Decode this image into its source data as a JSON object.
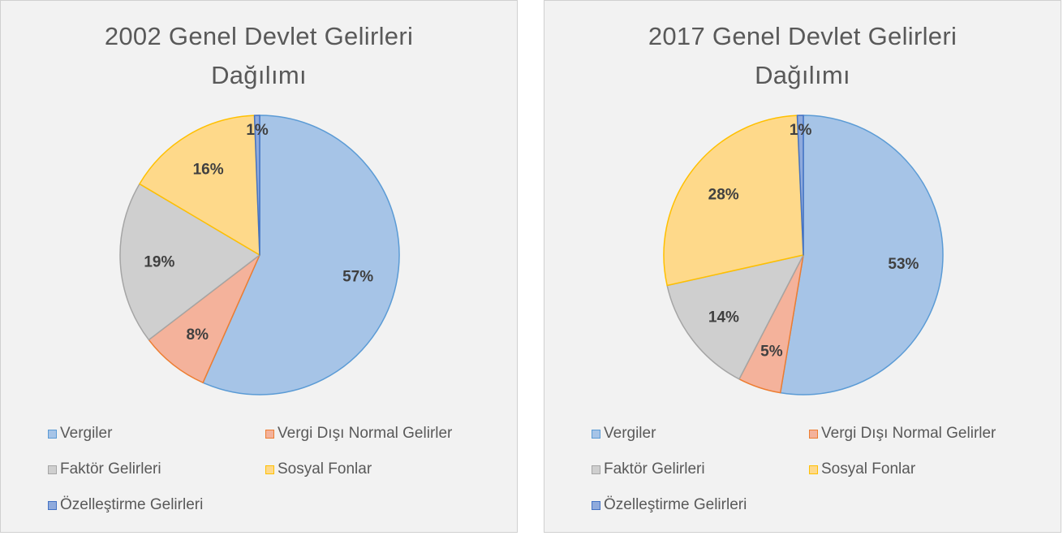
{
  "colors": {
    "Vergiler": {
      "fill": "#a6c4e7",
      "stroke": "#5b9bd5"
    },
    "Vergi Dışı Normal Gelirler": {
      "fill": "#f4b29b",
      "stroke": "#ed7d31"
    },
    "Faktör Gelirleri": {
      "fill": "#cfcfcf",
      "stroke": "#a5a5a5"
    },
    "Sosyal Fonlar": {
      "fill": "#fed98a",
      "stroke": "#ffc000"
    },
    "Özelleştirme Gelirleri": {
      "fill": "#8faadc",
      "stroke": "#4472c4"
    }
  },
  "chart_data": [
    {
      "type": "pie",
      "title_line1": "2002 Genel Devlet Gelirleri",
      "title_line2": "Dağılımı",
      "legend_position": "bottom",
      "slices": [
        {
          "label": "Vergiler",
          "value": 57,
          "display": "57%"
        },
        {
          "label": "Vergi Dışı Normal Gelirler",
          "value": 8,
          "display": "8%"
        },
        {
          "label": "Faktör Gelirleri",
          "value": 19,
          "display": "19%"
        },
        {
          "label": "Sosyal Fonlar",
          "value": 16,
          "display": "16%"
        },
        {
          "label": "Özelleştirme Gelirleri",
          "value": 0.6,
          "display": "1%"
        }
      ],
      "legend": [
        "Vergiler",
        "Vergi Dışı Normal Gelirler",
        "Faktör Gelirleri",
        "Sosyal Fonlar",
        "Özelleştirme Gelirleri"
      ]
    },
    {
      "type": "pie",
      "title_line1": "2017 Genel Devlet Gelirleri",
      "title_line2": "Dağılımı",
      "legend_position": "bottom",
      "slices": [
        {
          "label": "Vergiler",
          "value": 53,
          "display": "53%"
        },
        {
          "label": "Vergi Dışı Normal Gelirler",
          "value": 5,
          "display": "5%"
        },
        {
          "label": "Faktör Gelirleri",
          "value": 14,
          "display": "14%"
        },
        {
          "label": "Sosyal Fonlar",
          "value": 28,
          "display": "28%"
        },
        {
          "label": "Özelleştirme Gelirleri",
          "value": 0.7,
          "display": "1%"
        }
      ],
      "legend": [
        "Vergiler",
        "Vergi Dışı Normal Gelirler",
        "Faktör Gelirleri",
        "Sosyal Fonlar",
        "Özelleştirme Gelirleri"
      ]
    }
  ]
}
